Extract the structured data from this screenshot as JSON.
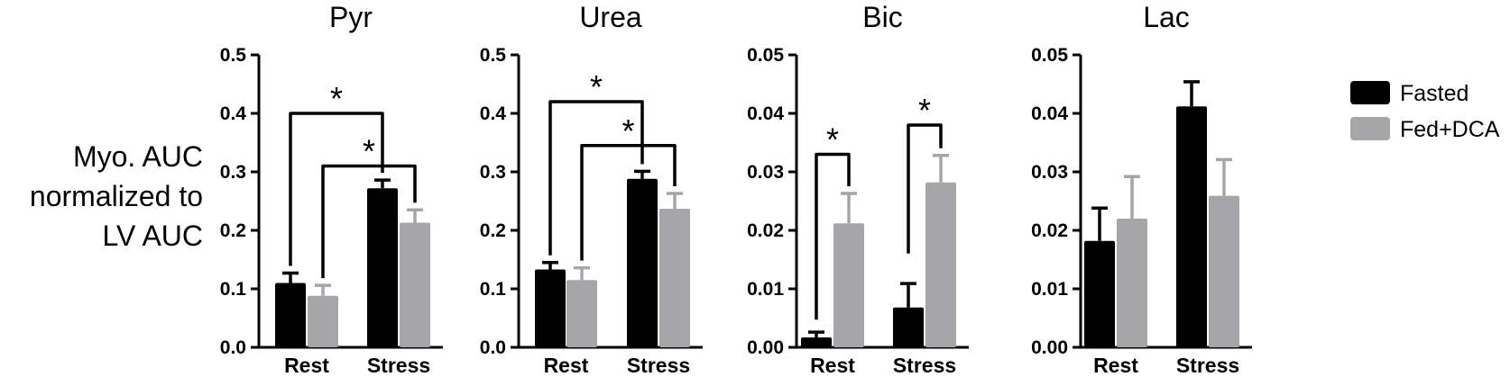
{
  "ylabel_lines": [
    "Myo. AUC",
    "normalized to",
    "LV AUC"
  ],
  "legend": [
    {
      "label": "Fasted",
      "color": "#000000"
    },
    {
      "label": "Fed+DCA",
      "color": "#a6a6a8"
    }
  ],
  "star_symbol": "*",
  "chart_data": [
    {
      "type": "bar",
      "title": "Pyr",
      "categories": [
        "Rest",
        "Stress"
      ],
      "series": [
        {
          "name": "Fasted",
          "values": [
            0.11,
            0.272
          ],
          "errors": [
            0.017,
            0.014
          ]
        },
        {
          "name": "Fed+DCA",
          "values": [
            0.088,
            0.213
          ],
          "errors": [
            0.018,
            0.022
          ]
        }
      ],
      "ylim": [
        0,
        0.5
      ],
      "yticks": [
        "0.0",
        "0.1",
        "0.2",
        "0.3",
        "0.4",
        "0.5"
      ],
      "significance": [
        {
          "from": [
            0,
            0
          ],
          "to": [
            1,
            0
          ],
          "y": 0.4,
          "label": "*"
        },
        {
          "from": [
            0,
            1
          ],
          "to": [
            1,
            1
          ],
          "y": 0.31,
          "label": "*"
        }
      ]
    },
    {
      "type": "bar",
      "title": "Urea",
      "categories": [
        "Rest",
        "Stress"
      ],
      "series": [
        {
          "name": "Fasted",
          "values": [
            0.133,
            0.288
          ],
          "errors": [
            0.012,
            0.013
          ]
        },
        {
          "name": "Fed+DCA",
          "values": [
            0.115,
            0.237
          ],
          "errors": [
            0.021,
            0.026
          ]
        }
      ],
      "ylim": [
        0,
        0.5
      ],
      "yticks": [
        "0.0",
        "0.1",
        "0.2",
        "0.3",
        "0.4",
        "0.5"
      ],
      "significance": [
        {
          "from": [
            0,
            0
          ],
          "to": [
            1,
            0
          ],
          "y": 0.42,
          "label": "*"
        },
        {
          "from": [
            0,
            1
          ],
          "to": [
            1,
            1
          ],
          "y": 0.345,
          "label": "*"
        }
      ]
    },
    {
      "type": "bar",
      "title": "Bic",
      "categories": [
        "Rest",
        "Stress"
      ],
      "series": [
        {
          "name": "Fasted",
          "values": [
            0.0017,
            0.0068
          ],
          "errors": [
            0.0009,
            0.0041
          ]
        },
        {
          "name": "Fed+DCA",
          "values": [
            0.0212,
            0.0282
          ],
          "errors": [
            0.0051,
            0.0046
          ]
        }
      ],
      "ylim": [
        0,
        0.05
      ],
      "yticks": [
        "0.00",
        "0.01",
        "0.02",
        "0.03",
        "0.04",
        "0.05"
      ],
      "significance": [
        {
          "from": [
            0,
            0
          ],
          "to": [
            0,
            1
          ],
          "y": 0.033,
          "label": "*",
          "start_y": 0.0035
        },
        {
          "from": [
            1,
            0
          ],
          "to": [
            1,
            1
          ],
          "y": 0.038,
          "label": "*",
          "start_y": 0.0148
        }
      ]
    },
    {
      "type": "bar",
      "title": "Lac",
      "categories": [
        "Rest",
        "Stress"
      ],
      "series": [
        {
          "name": "Fasted",
          "values": [
            0.0182,
            0.0412
          ],
          "errors": [
            0.0056,
            0.0042
          ]
        },
        {
          "name": "Fed+DCA",
          "values": [
            0.022,
            0.0259
          ],
          "errors": [
            0.0072,
            0.0062
          ]
        }
      ],
      "ylim": [
        0,
        0.05
      ],
      "yticks": [
        "0.00",
        "0.01",
        "0.02",
        "0.03",
        "0.04",
        "0.05"
      ],
      "significance": []
    }
  ]
}
